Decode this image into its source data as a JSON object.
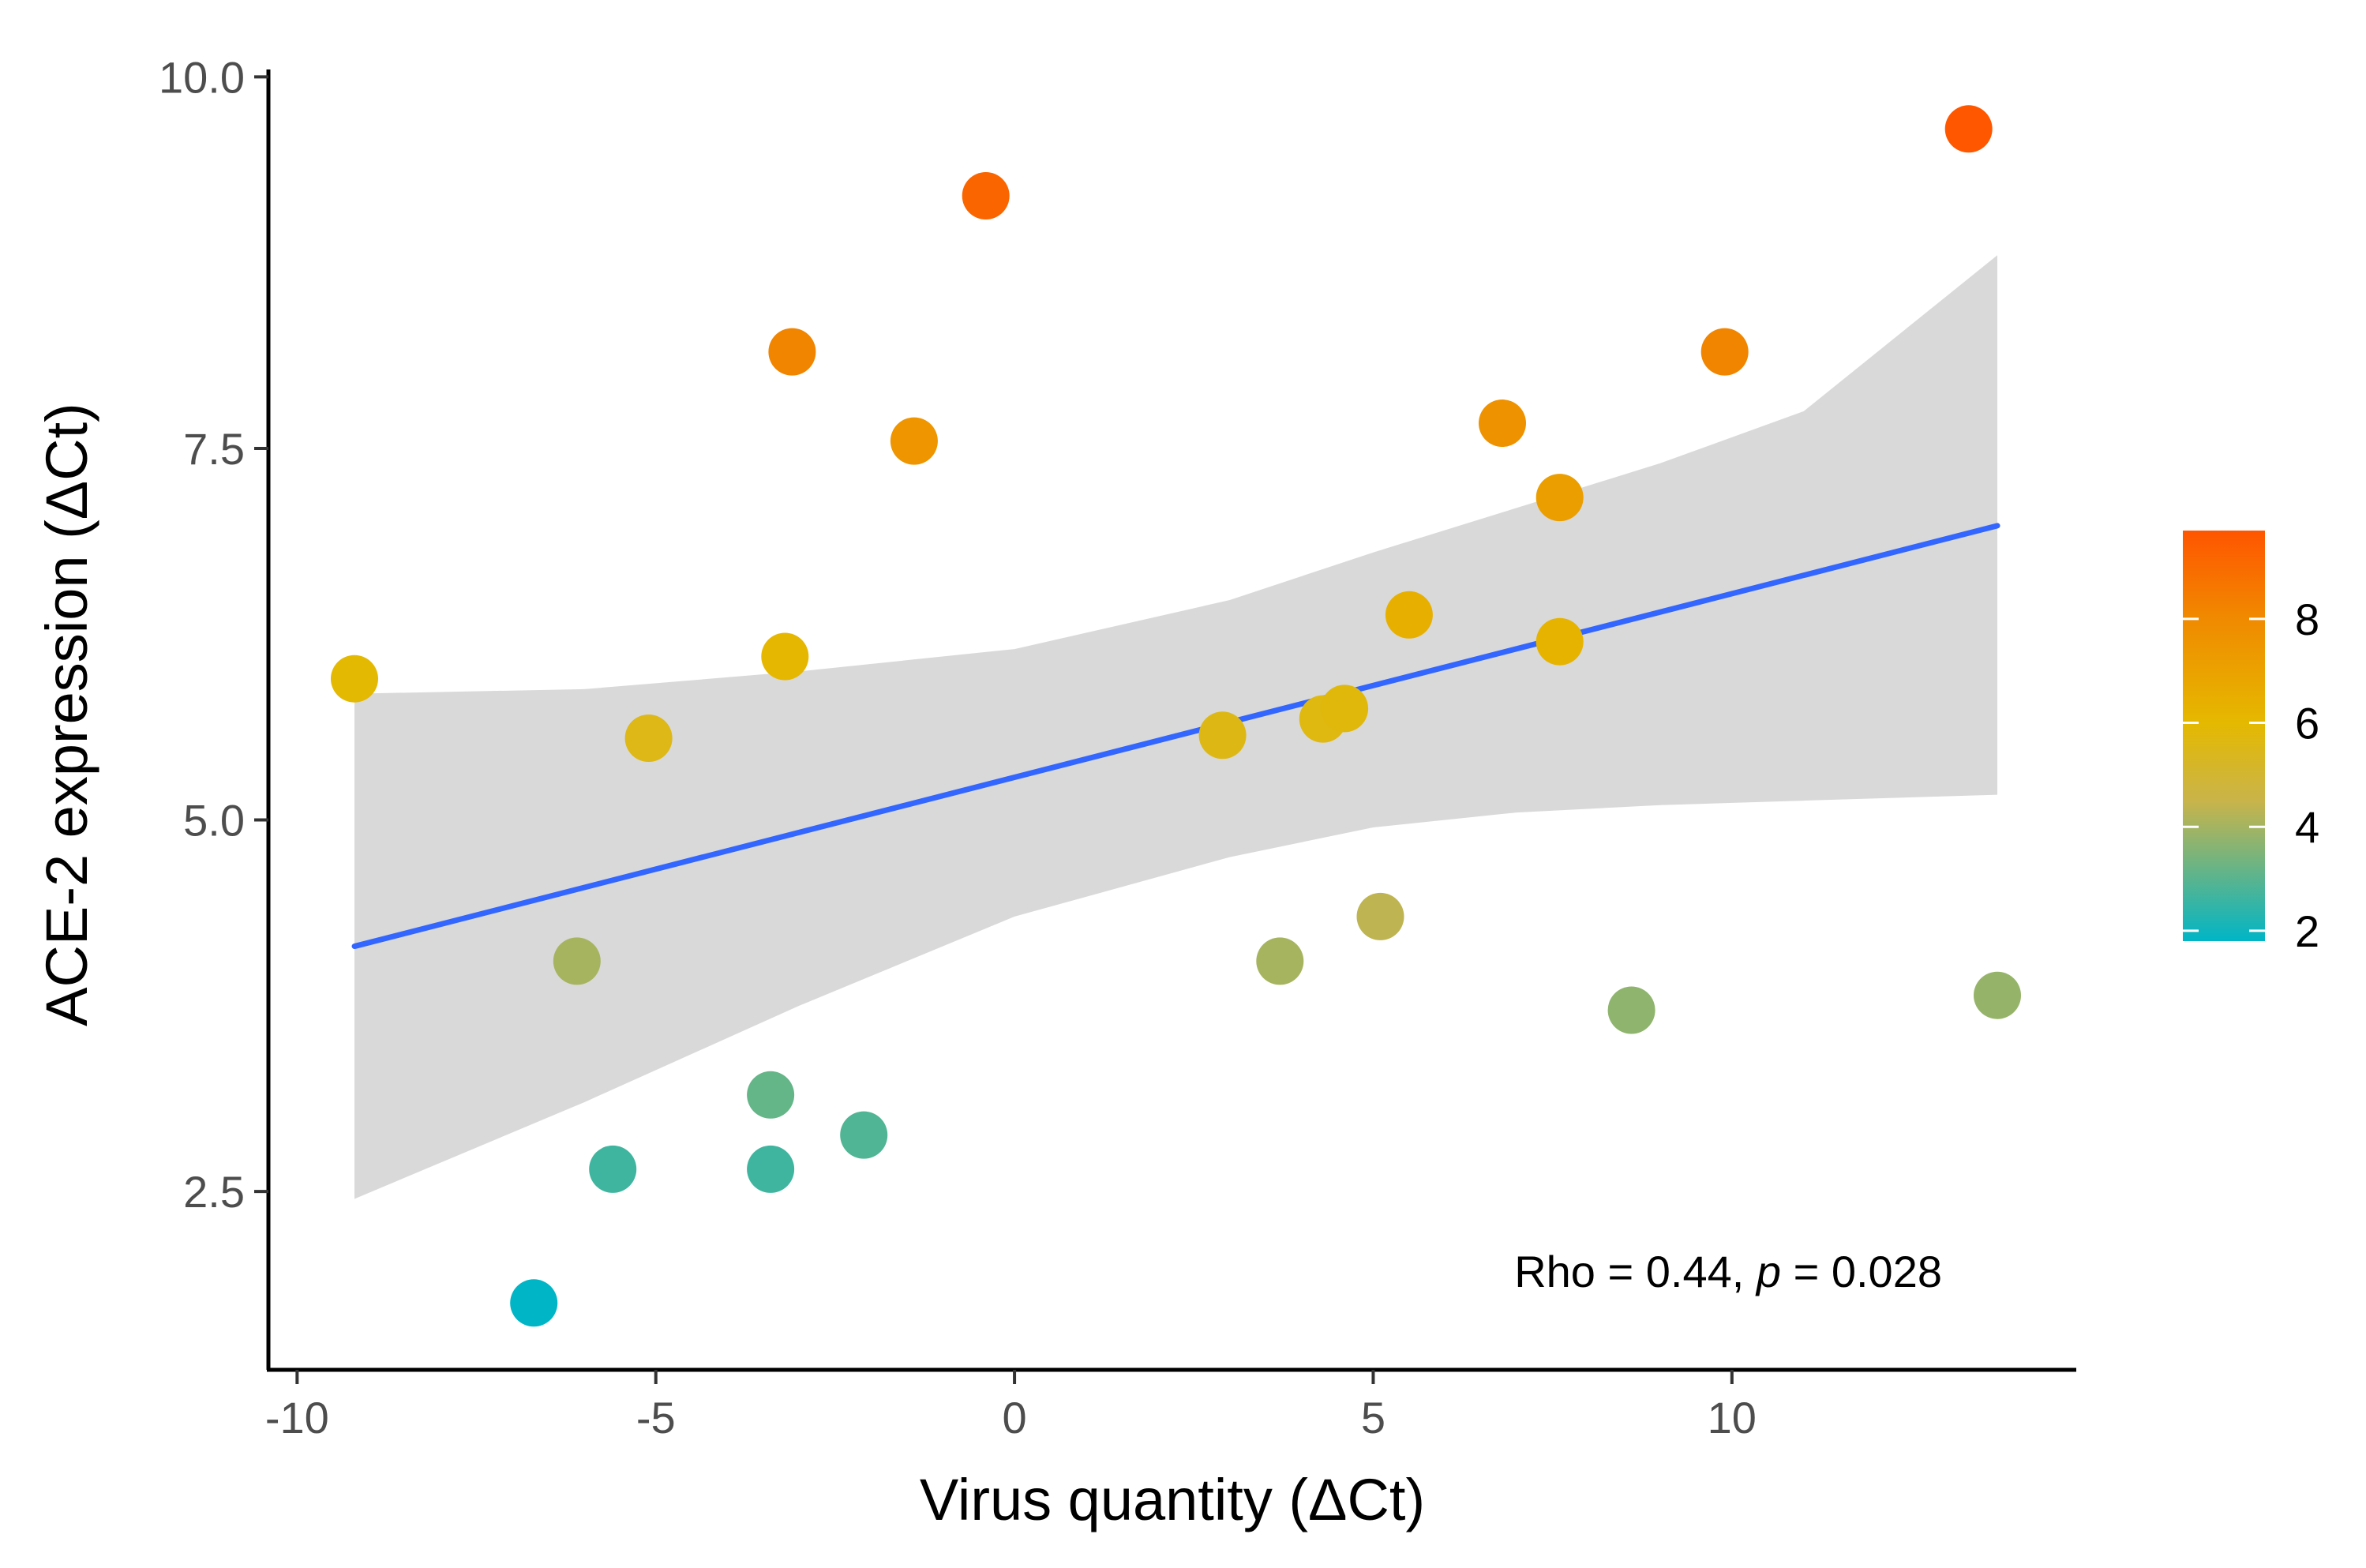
{
  "chart_data": {
    "type": "scatter",
    "title": "",
    "xlabel": "Virus quantity (ΔCt)",
    "ylabel": "ACE-2 expression (ΔCt)",
    "xlim": [
      -10.4,
      14.8
    ],
    "ylim": [
      1.3,
      10.05
    ],
    "x_ticks": [
      -10,
      -5,
      0,
      5,
      10
    ],
    "x_tick_labels": [
      "-10",
      "-5",
      "0",
      "5",
      "10"
    ],
    "y_ticks": [
      2.5,
      5.0,
      7.5,
      10.0
    ],
    "y_tick_labels": [
      "2.5",
      "5.0",
      "7.5",
      "10.0"
    ],
    "grid": false,
    "color_scale": {
      "min": 1.8,
      "max": 9.7,
      "ticks": [
        2,
        4,
        6,
        8
      ],
      "tick_labels": [
        "2",
        "4",
        "6",
        "8"
      ],
      "stops": [
        {
          "value": 1.8,
          "color": "#00b5c6"
        },
        {
          "value": 4.5,
          "color": "#c9b44a"
        },
        {
          "value": 6.0,
          "color": "#e5b900"
        },
        {
          "value": 8.0,
          "color": "#f08a00"
        },
        {
          "value": 9.7,
          "color": "#ff5500"
        }
      ],
      "legend_position": "right"
    },
    "points": [
      {
        "x": -9.2,
        "y": 5.95
      },
      {
        "x": -6.7,
        "y": 1.75
      },
      {
        "x": -6.1,
        "y": 4.05
      },
      {
        "x": -5.6,
        "y": 2.65
      },
      {
        "x": -5.1,
        "y": 5.55
      },
      {
        "x": -3.4,
        "y": 3.15
      },
      {
        "x": -3.4,
        "y": 2.65
      },
      {
        "x": -3.2,
        "y": 6.1
      },
      {
        "x": -3.1,
        "y": 8.15
      },
      {
        "x": -2.1,
        "y": 2.88
      },
      {
        "x": -1.4,
        "y": 7.55
      },
      {
        "x": -0.4,
        "y": 9.2
      },
      {
        "x": 2.9,
        "y": 5.57
      },
      {
        "x": 3.7,
        "y": 4.05
      },
      {
        "x": 4.3,
        "y": 5.68
      },
      {
        "x": 4.6,
        "y": 5.75
      },
      {
        "x": 5.1,
        "y": 4.35
      },
      {
        "x": 5.5,
        "y": 6.38
      },
      {
        "x": 6.8,
        "y": 7.67
      },
      {
        "x": 7.6,
        "y": 7.17
      },
      {
        "x": 7.6,
        "y": 6.2
      },
      {
        "x": 8.6,
        "y": 3.72
      },
      {
        "x": 9.9,
        "y": 8.15
      },
      {
        "x": 13.3,
        "y": 9.65
      },
      {
        "x": 13.7,
        "y": 3.82
      }
    ],
    "trend_line": {
      "type": "linear",
      "x": [
        -9.2,
        13.7
      ],
      "y": [
        4.15,
        6.98
      ],
      "color": "#3366ff"
    },
    "confidence_band": {
      "x": [
        -9.2,
        -6,
        -3,
        0,
        3,
        5,
        7,
        9,
        11,
        13.7
      ],
      "lower": [
        2.45,
        3.1,
        3.75,
        4.35,
        4.75,
        4.95,
        5.05,
        5.1,
        5.13,
        5.17
      ],
      "upper": [
        5.85,
        5.88,
        6.0,
        6.15,
        6.48,
        6.8,
        7.1,
        7.4,
        7.75,
        8.8
      ],
      "color": "#d9d9d9"
    },
    "annotations": [
      {
        "text_prefix": "Rho = 0.44, ",
        "text_italic": "p",
        "text_suffix": " = 0.028"
      }
    ]
  }
}
